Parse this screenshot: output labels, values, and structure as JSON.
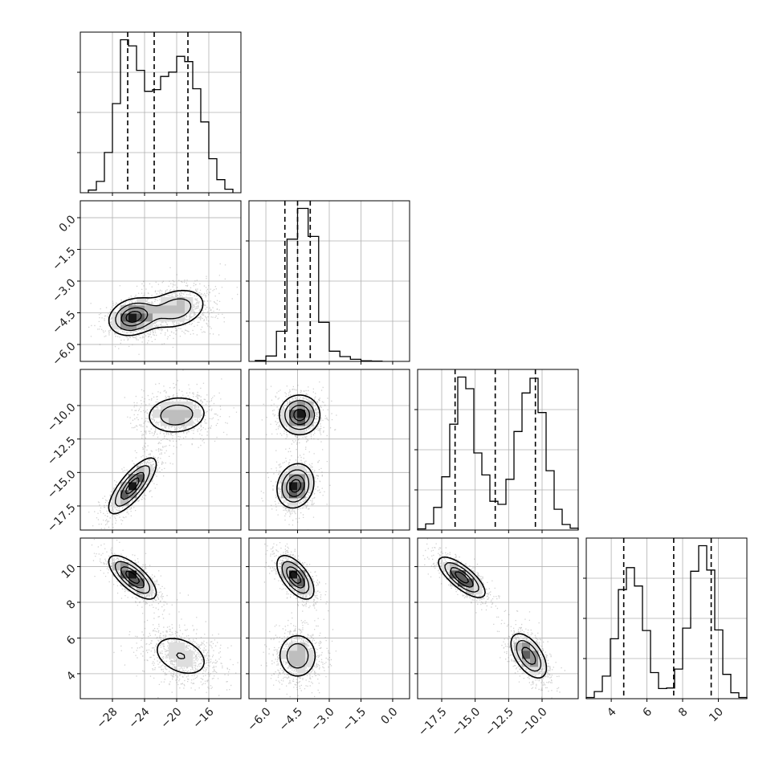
{
  "chart_data": {
    "type": "corner",
    "title": "",
    "axis_titles": [],
    "colors": {
      "line": "#000000",
      "grid": "#b0b0b0",
      "frame": "#000000",
      "scatter": "#7a7a7a"
    },
    "grid": true,
    "params": [
      {
        "range": [
          -32,
          -12
        ],
        "ticks": [
          -28,
          -24,
          -20,
          -16
        ],
        "tick_labels": [
          "−28",
          "−24",
          "−20",
          "−16"
        ],
        "quantiles": [
          -26.1,
          -22.8,
          -18.6
        ],
        "histogram": {
          "edges": [
            -31,
            -30,
            -29,
            -28,
            -27,
            -26,
            -25,
            -24,
            -23,
            -22,
            -21,
            -20,
            -19,
            -18,
            -17,
            -16,
            -15,
            -14,
            -13
          ],
          "counts": [
            0.3,
            1.3,
            4.6,
            10.2,
            17.5,
            16.8,
            14.0,
            11.6,
            11.8,
            13.3,
            13.8,
            15.6,
            15.0,
            11.9,
            8.1,
            3.9,
            1.5,
            0.4
          ]
        }
      },
      {
        "range": [
          -6.8,
          0.8
        ],
        "ticks": [
          -6.0,
          -4.5,
          -3.0,
          -1.5,
          0.0
        ],
        "tick_labels": [
          "−6.0",
          "−4.5",
          "−3.0",
          "−1.5",
          "0.0"
        ],
        "quantiles": [
          -5.1,
          -4.5,
          -3.9
        ],
        "histogram": {
          "edges": [
            -6.5,
            -6.0,
            -5.5,
            -5.0,
            -4.5,
            -4.0,
            -3.5,
            -3.0,
            -2.5,
            -2.0,
            -1.5,
            -1.0,
            -0.5
          ],
          "counts": [
            0.3,
            1.8,
            10.0,
            40.6,
            50.8,
            41.5,
            13.0,
            3.4,
            1.6,
            0.7,
            0.2,
            0.1
          ]
        }
      },
      {
        "range": [
          -19.3,
          -7.3
        ],
        "ticks": [
          -17.5,
          -15.0,
          -12.5,
          -10.0
        ],
        "tick_labels": [
          "−17.5",
          "−15.0",
          "−12.5",
          "−10.0"
        ],
        "quantiles": [
          -16.5,
          -13.5,
          -10.5
        ],
        "histogram": {
          "edges": [
            -19.3,
            -18.7,
            -18.1,
            -17.5,
            -16.9,
            -16.3,
            -15.7,
            -15.1,
            -14.5,
            -13.9,
            -13.3,
            -12.7,
            -12.1,
            -11.5,
            -10.9,
            -10.3,
            -9.7,
            -9.1,
            -8.5,
            -7.9,
            -7.3
          ],
          "counts": [
            0.2,
            1.0,
            3.7,
            8.7,
            17.3,
            25.0,
            23.1,
            12.6,
            9.0,
            4.7,
            4.2,
            8.3,
            16.1,
            22.4,
            24.8,
            19.2,
            9.7,
            3.4,
            0.9,
            0.3
          ]
        }
      },
      {
        "range": [
          2.6,
          11.6
        ],
        "ticks": [
          4,
          6,
          8,
          10
        ],
        "tick_labels": [
          "4",
          "6",
          "8",
          "10"
        ],
        "quantiles": [
          4.7,
          7.5,
          9.6
        ],
        "histogram": {
          "edges": [
            2.6,
            3.05,
            3.5,
            3.95,
            4.4,
            4.85,
            5.3,
            5.75,
            6.2,
            6.65,
            7.1,
            7.55,
            8.0,
            8.45,
            8.9,
            9.35,
            9.8,
            10.25,
            10.7,
            11.15,
            11.6
          ],
          "counts": [
            0.2,
            1.2,
            3.8,
            10.1,
            18.4,
            22.1,
            19.0,
            11.5,
            4.4,
            1.7,
            1.8,
            5.0,
            11.9,
            21.5,
            25.8,
            21.7,
            11.6,
            4.1,
            1.0,
            0.2
          ]
        }
      }
    ],
    "pairs": [
      {
        "row": 1,
        "col": 0,
        "modes": [
          {
            "x": -25.5,
            "y": -4.7,
            "sx": 1.7,
            "sy": 0.5,
            "rho": 0.2,
            "w": 0.5
          },
          {
            "x": -20.0,
            "y": -4.3,
            "sx": 2.3,
            "sy": 0.6,
            "rho": 0.25,
            "w": 0.5
          }
        ]
      },
      {
        "row": 2,
        "col": 0,
        "modes": [
          {
            "x": -25.5,
            "y": -16.0,
            "sx": 1.7,
            "sy": 1.2,
            "rho": 0.78,
            "w": 0.5
          },
          {
            "x": -20.0,
            "y": -10.7,
            "sx": 2.3,
            "sy": 0.85,
            "rho": 0.1,
            "w": 0.5
          }
        ]
      },
      {
        "row": 2,
        "col": 1,
        "modes": [
          {
            "x": -4.6,
            "y": -16.0,
            "sx": 0.5,
            "sy": 0.95,
            "rho": 0.15,
            "w": 0.5
          },
          {
            "x": -4.4,
            "y": -10.7,
            "sx": 0.55,
            "sy": 0.85,
            "rho": 0.0,
            "w": 0.5
          }
        ]
      },
      {
        "row": 3,
        "col": 0,
        "modes": [
          {
            "x": -25.5,
            "y": 9.4,
            "sx": 1.7,
            "sy": 0.7,
            "rho": -0.72,
            "w": 0.5
          },
          {
            "x": -19.5,
            "y": 5.0,
            "sx": 2.4,
            "sy": 0.8,
            "rho": -0.35,
            "w": 0.5
          }
        ]
      },
      {
        "row": 3,
        "col": 1,
        "modes": [
          {
            "x": -4.6,
            "y": 9.4,
            "sx": 0.5,
            "sy": 0.7,
            "rho": -0.6,
            "w": 0.5
          },
          {
            "x": -4.5,
            "y": 5.0,
            "sx": 0.55,
            "sy": 0.75,
            "rho": 0.0,
            "w": 0.5
          }
        ]
      },
      {
        "row": 3,
        "col": 2,
        "modes": [
          {
            "x": -16.0,
            "y": 9.4,
            "sx": 1.0,
            "sy": 0.65,
            "rho": -0.75,
            "w": 0.5
          },
          {
            "x": -11.0,
            "y": 5.0,
            "sx": 0.8,
            "sy": 0.75,
            "rho": -0.55,
            "w": 0.5
          }
        ]
      }
    ]
  }
}
